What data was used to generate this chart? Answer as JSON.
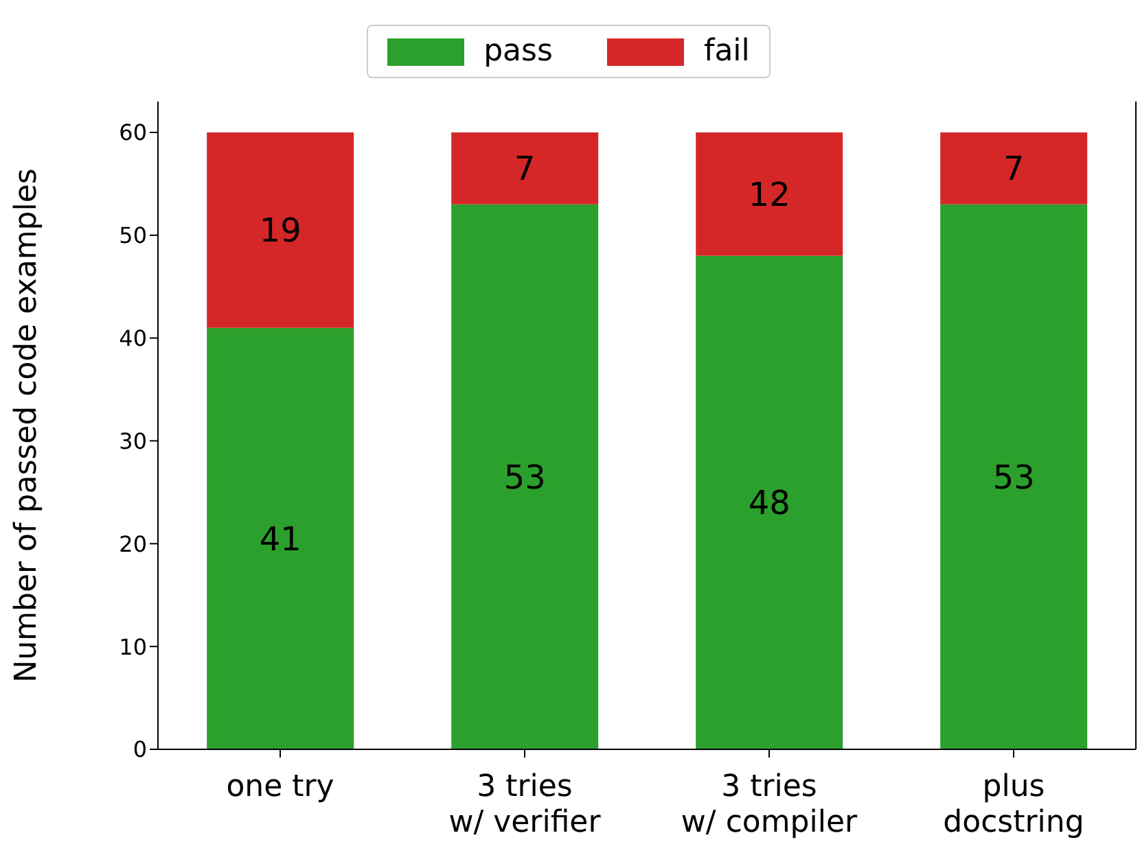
{
  "chart_data": {
    "type": "bar",
    "stacked": true,
    "categories": [
      "one try",
      "3 tries\nw/ verifier",
      "3 tries\nw/ compiler",
      "plus\ndocstring"
    ],
    "series": [
      {
        "name": "pass",
        "color": "#2ca02c",
        "values": [
          41,
          53,
          48,
          53
        ]
      },
      {
        "name": "fail",
        "color": "#d62728",
        "values": [
          19,
          7,
          12,
          7
        ]
      }
    ],
    "ylabel": "Number of passed code examples",
    "ylim": [
      0,
      63
    ],
    "yticks": [
      0,
      10,
      20,
      30,
      40,
      50,
      60
    ],
    "data_labels": true,
    "legend": "top",
    "grid": false
  }
}
